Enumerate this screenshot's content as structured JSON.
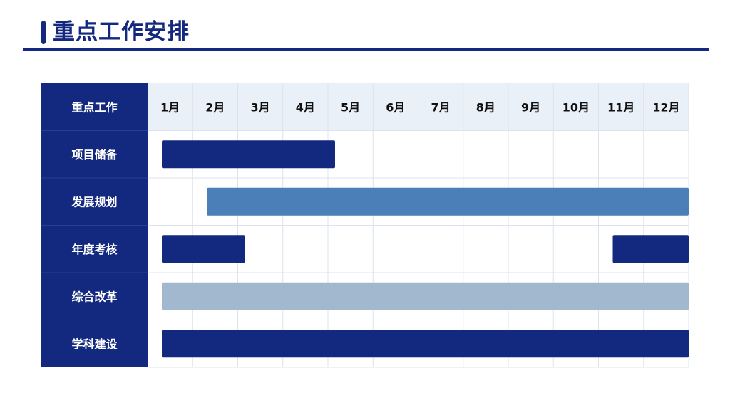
{
  "title": "重点工作安排",
  "colors": {
    "brand": "#13287f",
    "header_bg": "#eaf0f8",
    "grid": "#dde3ec",
    "bar_dark": "#13287f",
    "bar_mid": "#4a7fb7",
    "bar_light": "#a2b8cf"
  },
  "chart_data": {
    "type": "gantt",
    "row_header": "重点工作",
    "months": [
      "1月",
      "2月",
      "3月",
      "4月",
      "5月",
      "6月",
      "7月",
      "8月",
      "9月",
      "10月",
      "11月",
      "12月"
    ],
    "tasks": [
      {
        "name": "项目储备",
        "segments": [
          {
            "start_month": 1,
            "end_month": 4,
            "color": "#13287f"
          }
        ]
      },
      {
        "name": "发展规划",
        "segments": [
          {
            "start_month": 2,
            "end_month": 12,
            "color": "#4a7fb7"
          }
        ]
      },
      {
        "name": "年度考核",
        "segments": [
          {
            "start_month": 1,
            "end_month": 2,
            "color": "#13287f"
          },
          {
            "start_month": 11,
            "end_month": 12,
            "color": "#13287f"
          }
        ]
      },
      {
        "name": "综合改革",
        "segments": [
          {
            "start_month": 1,
            "end_month": 12,
            "color": "#a2b8cf"
          }
        ]
      },
      {
        "name": "学科建设",
        "segments": [
          {
            "start_month": 1,
            "end_month": 12,
            "color": "#13287f"
          }
        ]
      }
    ]
  }
}
